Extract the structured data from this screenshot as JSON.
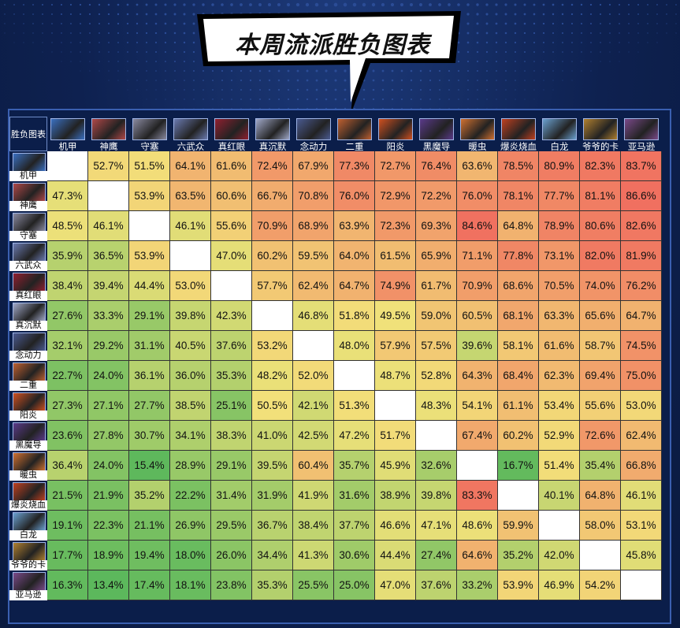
{
  "banner": {
    "title": "本周流派胜负图表"
  },
  "chart_data": {
    "type": "heatmap",
    "corner_label": "胜负图表",
    "columns": [
      "机甲",
      "神鹰",
      "守塞",
      "六武众",
      "真红眼",
      "真沉默",
      "念动力",
      "二重",
      "阳炎",
      "黑魔导",
      "暖虫",
      "爆炎烧血",
      "白龙",
      "爷爷的卡",
      "亚马逊"
    ],
    "rows": [
      "机甲",
      "神鹰",
      "守塞",
      "六武众",
      "真红眼",
      "真沉默",
      "念动力",
      "二重",
      "阳炎",
      "黑魔导",
      "暖虫",
      "爆炎烧血",
      "白龙",
      "爷爷的卡",
      "亚马逊"
    ],
    "values": [
      [
        null,
        "52.7%",
        "51.5%",
        "64.1%",
        "61.6%",
        "72.4%",
        "67.9%",
        "77.3%",
        "72.7%",
        "76.4%",
        "63.6%",
        "78.5%",
        "80.9%",
        "82.3%",
        "83.7%"
      ],
      [
        "47.3%",
        null,
        "53.9%",
        "63.5%",
        "60.6%",
        "66.7%",
        "70.8%",
        "76.0%",
        "72.9%",
        "72.2%",
        "76.0%",
        "78.1%",
        "77.7%",
        "81.1%",
        "86.6%"
      ],
      [
        "48.5%",
        "46.1%",
        null,
        "46.1%",
        "55.6%",
        "70.9%",
        "68.9%",
        "63.9%",
        "72.3%",
        "69.3%",
        "84.6%",
        "64.8%",
        "78.9%",
        "80.6%",
        "82.6%"
      ],
      [
        "35.9%",
        "36.5%",
        "53.9%",
        null,
        "47.0%",
        "60.2%",
        "59.5%",
        "64.0%",
        "61.5%",
        "65.9%",
        "71.1%",
        "77.8%",
        "73.1%",
        "82.0%",
        "81.9%"
      ],
      [
        "38.4%",
        "39.4%",
        "44.4%",
        "53.0%",
        null,
        "57.7%",
        "62.4%",
        "64.7%",
        "74.9%",
        "61.7%",
        "70.9%",
        "68.6%",
        "70.5%",
        "74.0%",
        "76.2%"
      ],
      [
        "27.6%",
        "33.3%",
        "29.1%",
        "39.8%",
        "42.3%",
        null,
        "46.8%",
        "51.8%",
        "49.5%",
        "59.0%",
        "60.5%",
        "68.1%",
        "63.3%",
        "65.6%",
        "64.7%"
      ],
      [
        "32.1%",
        "29.2%",
        "31.1%",
        "40.5%",
        "37.6%",
        "53.2%",
        null,
        "48.0%",
        "57.9%",
        "57.5%",
        "39.6%",
        "58.1%",
        "61.6%",
        "58.7%",
        "74.5%"
      ],
      [
        "22.7%",
        "24.0%",
        "36.1%",
        "36.0%",
        "35.3%",
        "48.2%",
        "52.0%",
        null,
        "48.7%",
        "52.8%",
        "64.3%",
        "68.4%",
        "62.3%",
        "69.4%",
        "75.0%"
      ],
      [
        "27.3%",
        "27.1%",
        "27.7%",
        "38.5%",
        "25.1%",
        "50.5%",
        "42.1%",
        "51.3%",
        null,
        "48.3%",
        "54.1%",
        "61.1%",
        "53.4%",
        "55.6%",
        "53.0%"
      ],
      [
        "23.6%",
        "27.8%",
        "30.7%",
        "34.1%",
        "38.3%",
        "41.0%",
        "42.5%",
        "47.2%",
        "51.7%",
        null,
        "67.4%",
        "60.2%",
        "52.9%",
        "72.6%",
        "62.4%"
      ],
      [
        "36.4%",
        "24.0%",
        "15.4%",
        "28.9%",
        "29.1%",
        "39.5%",
        "60.4%",
        "35.7%",
        "45.9%",
        "32.6%",
        null,
        "16.7%",
        "51.4%",
        "35.4%",
        "66.8%"
      ],
      [
        "21.5%",
        "21.9%",
        "35.2%",
        "22.2%",
        "31.4%",
        "31.9%",
        "41.9%",
        "31.6%",
        "38.9%",
        "39.8%",
        "83.3%",
        null,
        "40.1%",
        "64.8%",
        "46.1%"
      ],
      [
        "19.1%",
        "22.3%",
        "21.1%",
        "26.9%",
        "29.5%",
        "36.7%",
        "38.4%",
        "37.7%",
        "46.6%",
        "47.1%",
        "48.6%",
        "59.9%",
        null,
        "58.0%",
        "53.1%"
      ],
      [
        "17.7%",
        "18.9%",
        "19.4%",
        "18.0%",
        "26.0%",
        "34.4%",
        "41.3%",
        "30.6%",
        "44.4%",
        "27.4%",
        "64.6%",
        "35.2%",
        "42.0%",
        null,
        "45.8%"
      ],
      [
        "16.3%",
        "13.4%",
        "17.4%",
        "18.1%",
        "23.8%",
        "35.3%",
        "25.5%",
        "25.0%",
        "47.0%",
        "37.6%",
        "33.2%",
        "53.9%",
        "46.9%",
        "54.2%",
        null
      ]
    ],
    "color_scale": {
      "low": "#5cb85c",
      "mid": "#f2e27a",
      "high": "#f07060",
      "empty": "#ffffff"
    }
  },
  "portrait_colors": [
    "#3a6fc0",
    "#b04848",
    "#8a8aa0",
    "#6a7ab0",
    "#902030",
    "#a0a8c8",
    "#4a5a90",
    "#c06030",
    "#d05020",
    "#5a3a8a",
    "#d07030",
    "#c04020",
    "#6aa0d0",
    "#b08030",
    "#7a4a8a"
  ]
}
